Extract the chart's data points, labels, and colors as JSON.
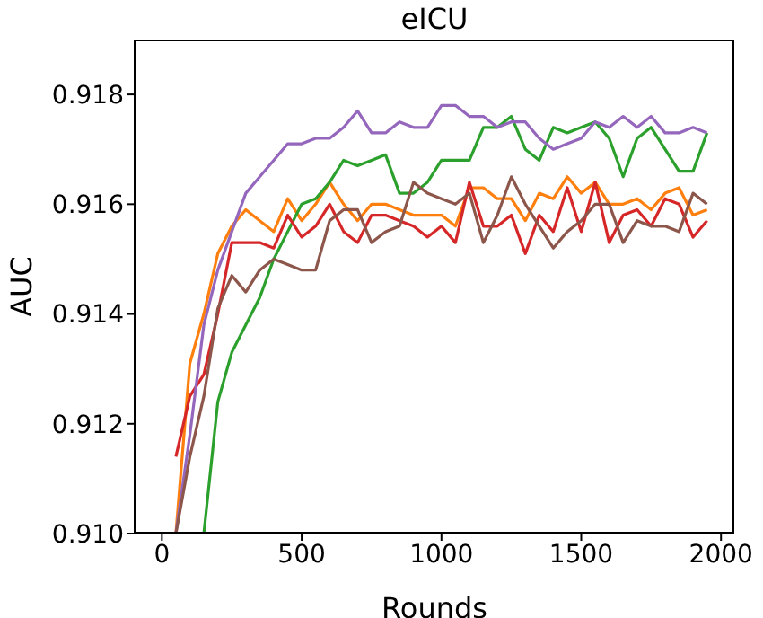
{
  "chart_data": {
    "type": "line",
    "title": "eICU",
    "xlabel": "Rounds",
    "ylabel": "AUC",
    "x": [
      50,
      100,
      150,
      200,
      250,
      300,
      350,
      400,
      450,
      500,
      550,
      600,
      650,
      700,
      750,
      800,
      850,
      900,
      950,
      1000,
      1050,
      1100,
      1150,
      1200,
      1250,
      1300,
      1350,
      1400,
      1450,
      1500,
      1550,
      1600,
      1650,
      1700,
      1750,
      1800,
      1850,
      1900,
      1950
    ],
    "series": [
      {
        "color": "#ff7f0e",
        "values": [
          0.91,
          0.9131,
          0.914,
          0.9151,
          0.9156,
          0.9159,
          0.9157,
          0.9155,
          0.9161,
          0.9157,
          0.916,
          0.9164,
          0.916,
          0.9157,
          0.916,
          0.916,
          0.9159,
          0.9158,
          0.9158,
          0.9158,
          0.9156,
          0.9163,
          0.9163,
          0.9161,
          0.9161,
          0.9157,
          0.9162,
          0.9161,
          0.9165,
          0.9162,
          0.9164,
          0.916,
          0.916,
          0.9161,
          0.9159,
          0.9162,
          0.9163,
          0.9158,
          0.9159
        ]
      },
      {
        "color": "#2ca02c",
        "values": [
          null,
          null,
          0.91,
          0.9124,
          0.9133,
          0.9138,
          0.9143,
          0.915,
          0.9155,
          0.916,
          0.9161,
          0.9164,
          0.9168,
          0.9167,
          0.9168,
          0.9169,
          0.9162,
          0.9162,
          0.9164,
          0.9168,
          0.9168,
          0.9168,
          0.9174,
          0.9174,
          0.9176,
          0.917,
          0.9168,
          0.9174,
          0.9173,
          0.9174,
          0.9175,
          0.9172,
          0.9165,
          0.9172,
          0.9174,
          0.917,
          0.9166,
          0.9166,
          0.9173
        ]
      },
      {
        "color": "#d62728",
        "values": [
          0.9114,
          0.9125,
          0.9129,
          0.914,
          0.9153,
          0.9153,
          0.9153,
          0.9152,
          0.9158,
          0.9154,
          0.9156,
          0.916,
          0.9155,
          0.9153,
          0.9158,
          0.9158,
          0.9157,
          0.9156,
          0.9154,
          0.9156,
          0.9153,
          0.9164,
          0.9156,
          0.9156,
          0.9158,
          0.9151,
          0.9158,
          0.9155,
          0.9163,
          0.9155,
          0.9164,
          0.9153,
          0.9158,
          0.9159,
          0.9156,
          0.9161,
          0.916,
          0.9154,
          0.9157
        ]
      },
      {
        "color": "#9467bd",
        "values": [
          0.91,
          0.9118,
          0.9138,
          0.9148,
          0.9155,
          0.9162,
          0.9165,
          0.9168,
          0.9171,
          0.9171,
          0.9172,
          0.9172,
          0.9174,
          0.9177,
          0.9173,
          0.9173,
          0.9175,
          0.9174,
          0.9174,
          0.9178,
          0.9178,
          0.9176,
          0.9176,
          0.9174,
          0.9175,
          0.9175,
          0.9172,
          0.917,
          0.9171,
          0.9172,
          0.9175,
          0.9174,
          0.9176,
          0.9174,
          0.9176,
          0.9173,
          0.9173,
          0.9174,
          0.9173
        ]
      },
      {
        "color": "#8c564b",
        "values": [
          0.91,
          0.9114,
          0.9125,
          0.9141,
          0.9147,
          0.9144,
          0.9148,
          0.915,
          0.9149,
          0.9148,
          0.9148,
          0.9157,
          0.9159,
          0.9159,
          0.9153,
          0.9155,
          0.9156,
          0.9164,
          0.9162,
          0.9161,
          0.916,
          0.9162,
          0.9153,
          0.9158,
          0.9165,
          0.916,
          0.9156,
          0.9152,
          0.9155,
          0.9157,
          0.916,
          0.916,
          0.9153,
          0.9157,
          0.9156,
          0.9156,
          0.9155,
          0.9162,
          0.916
        ]
      }
    ],
    "xlim": [
      -97.5,
      2047.5
    ],
    "xticks": [
      0,
      500,
      1000,
      1500,
      2000
    ],
    "ylim": [
      0.91,
      0.919
    ],
    "yticks": [
      {
        "value": 0.91,
        "label": "0.910"
      },
      {
        "value": 0.912,
        "label": "0.912"
      },
      {
        "value": 0.914,
        "label": "0.914"
      },
      {
        "value": 0.916,
        "label": "0.916"
      },
      {
        "value": 0.918,
        "label": "0.918"
      }
    ],
    "grid": false,
    "legend": false,
    "marker": "none",
    "line_style": "solid"
  }
}
